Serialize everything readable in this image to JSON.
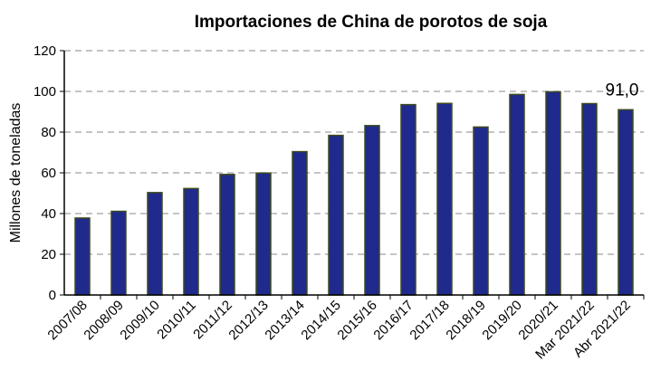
{
  "chart_data": {
    "type": "bar",
    "title": "Importaciones de China de porotos de soja",
    "ylabel": "Millones de toneladas",
    "xlabel": "",
    "ylim": [
      0,
      120
    ],
    "yticks": [
      0,
      20,
      40,
      60,
      80,
      100,
      120
    ],
    "grid": "horizontal-dashed",
    "categories": [
      "2007/08",
      "2008/09",
      "2009/10",
      "2010/11",
      "2011/12",
      "2012/13",
      "2013/14",
      "2014/15",
      "2015/16",
      "2016/17",
      "2017/18",
      "2018/19",
      "2019/20",
      "2020/21",
      "Mar 2021/22",
      "Abr 2021/22"
    ],
    "values": [
      37.8,
      41.1,
      50.3,
      52.3,
      59.2,
      59.9,
      70.4,
      78.4,
      83.2,
      93.5,
      94.1,
      82.5,
      98.5,
      99.8,
      94.0,
      91.0
    ],
    "annotations": [
      {
        "category": "Abr 2021/22",
        "text": "91,0"
      }
    ],
    "colors": {
      "bar_fill": "#1f2a8c",
      "bar_edge": "#3d4a1e",
      "grid": "#b0b0b0",
      "axis": "#000000"
    }
  }
}
